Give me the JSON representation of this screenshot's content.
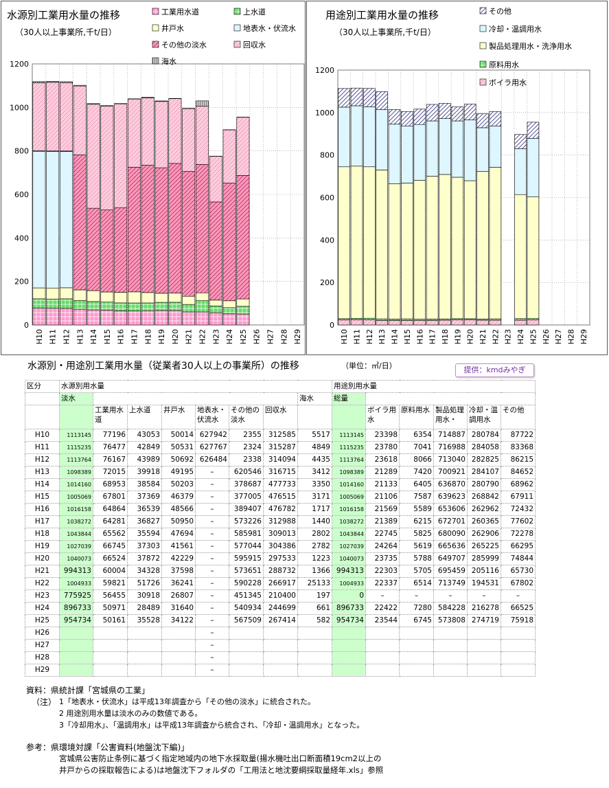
{
  "colors": {
    "industrial": "#ff99cc",
    "tap": "#66dd66",
    "well": "#ffffcc",
    "surface": "#ddf6ff",
    "other_fresh": "#ff99bb",
    "recovered": "#ffccdd",
    "seawater": "#cccccc",
    "boiler": "#ffccdd",
    "raw": "#66dd66",
    "process": "#ffffcc",
    "cooling": "#ddf6ff",
    "other_use": "#9999cc",
    "green_cell": "#ccffcc"
  },
  "chart_data": [
    {
      "type": "bar",
      "stacked": true,
      "title": "水源別工業用水量の推移",
      "subtitle": "（30人以上事業所,千t/日）",
      "categories": [
        "H10",
        "H11",
        "H12",
        "H13",
        "H14",
        "H15",
        "H16",
        "H17",
        "H18",
        "H19",
        "H20",
        "H21",
        "H22",
        "H23",
        "H24",
        "H25",
        "H26",
        "H27",
        "H28",
        "H29"
      ],
      "ylim": [
        0,
        1200
      ],
      "yticks": [
        0,
        200,
        400,
        600,
        800,
        1000,
        1200
      ],
      "legend_placement": "top-right",
      "series": [
        {
          "name": "工業用水道",
          "key": "industrial",
          "values": [
            77.2,
            76.5,
            76.2,
            72.0,
            69.0,
            67.8,
            64.9,
            64.3,
            65.6,
            66.7,
            66.5,
            60.0,
            59.8,
            56.5,
            51.0,
            50.2,
            null,
            null,
            null,
            null
          ]
        },
        {
          "name": "上水道",
          "key": "tap",
          "values": [
            43.1,
            42.8,
            44.0,
            39.9,
            38.6,
            37.4,
            36.5,
            36.8,
            35.6,
            37.3,
            37.9,
            34.3,
            51.7,
            30.9,
            28.5,
            35.5,
            null,
            null,
            null,
            null
          ]
        },
        {
          "name": "井戸水",
          "key": "well",
          "values": [
            50.0,
            50.5,
            50.7,
            49.2,
            50.2,
            46.4,
            48.6,
            51.0,
            47.7,
            41.6,
            42.2,
            37.6,
            36.2,
            26.8,
            31.6,
            34.1,
            null,
            null,
            null,
            null
          ]
        },
        {
          "name": "地表水・伏流水",
          "key": "surface",
          "values": [
            627.9,
            627.8,
            626.5,
            0,
            0,
            0,
            0,
            0,
            0,
            0,
            0,
            0,
            0,
            0,
            0,
            0,
            null,
            null,
            null,
            null
          ]
        },
        {
          "name": "その他の淡水",
          "key": "other_fresh",
          "values": [
            2.4,
            2.3,
            2.3,
            620.5,
            378.7,
            377.0,
            389.4,
            573.2,
            586.0,
            577.0,
            596.0,
            573.7,
            590.2,
            451.3,
            540.9,
            567.5,
            null,
            null,
            null,
            null
          ]
        },
        {
          "name": "回収水",
          "key": "recovered",
          "values": [
            312.6,
            315.3,
            314.1,
            316.7,
            477.7,
            476.5,
            476.8,
            313.0,
            309.0,
            304.4,
            297.5,
            288.7,
            267.0,
            210.4,
            244.7,
            267.4,
            null,
            null,
            null,
            null
          ]
        },
        {
          "name": "海水",
          "key": "seawater",
          "values": [
            5.5,
            4.8,
            4.4,
            3.4,
            3.4,
            3.2,
            1.7,
            1.4,
            2.8,
            2.8,
            1.2,
            1.4,
            25.1,
            0.2,
            0.7,
            0.6,
            null,
            null,
            null,
            null
          ]
        }
      ]
    },
    {
      "type": "bar",
      "stacked": true,
      "title": "用途別工業用水量の推移",
      "subtitle": "（30人以上事業所,千t/日）",
      "categories": [
        "H10",
        "H11",
        "H12",
        "H13",
        "H14",
        "H15",
        "H16",
        "H17",
        "H18",
        "H19",
        "H20",
        "H21",
        "H22",
        "H23",
        "H24",
        "H25",
        "H26",
        "H27",
        "H28",
        "H29"
      ],
      "ylim": [
        0,
        1200
      ],
      "yticks": [
        0,
        200,
        400,
        600,
        800,
        1000,
        1200
      ],
      "legend_placement": "top-right",
      "series": [
        {
          "name": "ボイラ用水",
          "key": "boiler",
          "values": [
            23.4,
            23.8,
            23.6,
            21.3,
            21.1,
            21.1,
            21.6,
            21.4,
            22.7,
            24.3,
            23.7,
            22.3,
            22.3,
            null,
            22.4,
            23.5,
            null,
            null,
            null,
            null
          ]
        },
        {
          "name": "原料用水",
          "key": "raw",
          "values": [
            6.4,
            7.0,
            8.1,
            7.4,
            6.4,
            7.6,
            5.6,
            6.2,
            5.8,
            5.6,
            5.8,
            5.7,
            6.5,
            null,
            7.3,
            6.7,
            null,
            null,
            null,
            null
          ]
        },
        {
          "name": "製品処理用水・洗浄用水",
          "key": "process",
          "values": [
            714.9,
            717.0,
            713.0,
            700.9,
            636.9,
            639.6,
            653.6,
            672.7,
            680.1,
            665.6,
            649.7,
            695.5,
            713.7,
            null,
            584.2,
            573.8,
            null,
            null,
            null,
            null
          ]
        },
        {
          "name": "冷却・温調用水",
          "key": "cooling",
          "values": [
            280.8,
            284.1,
            282.8,
            284.1,
            280.8,
            268.8,
            263.0,
            260.4,
            262.9,
            265.2,
            286.0,
            205.1,
            194.5,
            null,
            216.3,
            274.7,
            null,
            null,
            null,
            null
          ]
        },
        {
          "name": "その他",
          "key": "other_use",
          "values": [
            87.7,
            83.4,
            86.2,
            84.7,
            69.0,
            67.9,
            72.4,
            77.6,
            72.3,
            66.3,
            74.8,
            65.7,
            67.8,
            null,
            66.5,
            75.9,
            null,
            null,
            null,
            null
          ]
        }
      ]
    }
  ],
  "table": {
    "title": "水源別・用途別工業用水量（従業者30人以上の事業所）の推移",
    "unit": "（単位：㎥/日）",
    "provider": "提供：kmdみやぎ",
    "hdr_kubun": "区分",
    "hdr_source": "水源別用水量",
    "hdr_fresh": "淡水",
    "hdr_sea": "海水",
    "hdr_use": "用途別用水量",
    "hdr_total": "総量",
    "cols_source": [
      "工業用水道",
      "上水道",
      "井戸水",
      "地表水・伏流水",
      "その他の淡水",
      "回収水"
    ],
    "cols_use": [
      "ボイラ用水",
      "原料用水",
      "製品処理用水・",
      "冷却・温調用水",
      "その他"
    ],
    "rows": [
      {
        "y": "H10",
        "fresh": "1113145",
        "ind": "77196",
        "tap": "43053",
        "well": "50014",
        "surf": "627942",
        "oth": "2355",
        "rec": "312585",
        "sea": "5517",
        "total": "1113145",
        "boil": "23398",
        "raw": "6354",
        "proc": "714887",
        "cool": "280784",
        "other": "87722"
      },
      {
        "y": "H11",
        "fresh": "1115235",
        "ind": "76477",
        "tap": "42849",
        "well": "50531",
        "surf": "627767",
        "oth": "2324",
        "rec": "315287",
        "sea": "4849",
        "total": "1115235",
        "boil": "23780",
        "raw": "7041",
        "proc": "716988",
        "cool": "284058",
        "other": "83368"
      },
      {
        "y": "H12",
        "fresh": "1113764",
        "ind": "76167",
        "tap": "43989",
        "well": "50692",
        "surf": "626484",
        "oth": "2338",
        "rec": "314094",
        "sea": "4435",
        "total": "1113764",
        "boil": "23618",
        "raw": "8066",
        "proc": "713040",
        "cool": "282825",
        "other": "86215"
      },
      {
        "y": "H13",
        "fresh": "1098389",
        "ind": "72015",
        "tap": "39918",
        "well": "49195",
        "surf": "–",
        "oth": "620546",
        "rec": "316715",
        "sea": "3412",
        "total": "1098389",
        "boil": "21289",
        "raw": "7420",
        "proc": "700921",
        "cool": "284107",
        "other": "84652"
      },
      {
        "y": "H14",
        "fresh": "1014160",
        "ind": "68953",
        "tap": "38584",
        "well": "50203",
        "surf": "–",
        "oth": "378687",
        "rec": "477733",
        "sea": "3350",
        "total": "1014160",
        "boil": "21133",
        "raw": "6405",
        "proc": "636870",
        "cool": "280790",
        "other": "68962"
      },
      {
        "y": "H15",
        "fresh": "1005069",
        "ind": "67801",
        "tap": "37369",
        "well": "46379",
        "surf": "–",
        "oth": "377005",
        "rec": "476515",
        "sea": "3171",
        "total": "1005069",
        "boil": "21106",
        "raw": "7587",
        "proc": "639623",
        "cool": "268842",
        "other": "67911"
      },
      {
        "y": "H16",
        "fresh": "1016158",
        "ind": "64864",
        "tap": "36539",
        "well": "48566",
        "surf": "–",
        "oth": "389407",
        "rec": "476782",
        "sea": "1717",
        "total": "1016158",
        "boil": "21569",
        "raw": "5589",
        "proc": "653606",
        "cool": "262962",
        "other": "72432"
      },
      {
        "y": "H17",
        "fresh": "1038272",
        "ind": "64281",
        "tap": "36827",
        "well": "50950",
        "surf": "–",
        "oth": "573226",
        "rec": "312988",
        "sea": "1440",
        "total": "1038272",
        "boil": "21389",
        "raw": "6215",
        "proc": "672701",
        "cool": "260365",
        "other": "77602"
      },
      {
        "y": "H18",
        "fresh": "1043844",
        "ind": "65562",
        "tap": "35594",
        "well": "47694",
        "surf": "–",
        "oth": "585981",
        "rec": "309013",
        "sea": "2802",
        "total": "1043844",
        "boil": "22745",
        "raw": "5825",
        "proc": "680090",
        "cool": "262906",
        "other": "72278"
      },
      {
        "y": "H19",
        "fresh": "1027039",
        "ind": "66745",
        "tap": "37303",
        "well": "41561",
        "surf": "–",
        "oth": "577044",
        "rec": "304386",
        "sea": "2782",
        "total": "1027039",
        "boil": "24264",
        "raw": "5619",
        "proc": "665636",
        "cool": "265225",
        "other": "66295"
      },
      {
        "y": "H20",
        "fresh": "1040073",
        "ind": "66524",
        "tap": "37872",
        "well": "42229",
        "surf": "–",
        "oth": "595915",
        "rec": "297533",
        "sea": "1223",
        "total": "1040073",
        "boil": "23735",
        "raw": "5788",
        "proc": "649707",
        "cool": "285999",
        "other": "74844"
      },
      {
        "y": "H21",
        "fresh": "994313",
        "ind": "60004",
        "tap": "34328",
        "well": "37598",
        "surf": "–",
        "oth": "573651",
        "rec": "288732",
        "sea": "1366",
        "total": "994313",
        "boil": "22303",
        "raw": "5705",
        "proc": "695459",
        "cool": "205116",
        "other": "65730"
      },
      {
        "y": "H22",
        "fresh": "1004933",
        "ind": "59821",
        "tap": "51726",
        "well": "36241",
        "surf": "–",
        "oth": "590228",
        "rec": "266917",
        "sea": "25133",
        "total": "1004933",
        "boil": "22337",
        "raw": "6514",
        "proc": "713749",
        "cool": "194531",
        "other": "67802"
      },
      {
        "y": "H23",
        "fresh": "775925",
        "ind": "56455",
        "tap": "30918",
        "well": "26807",
        "surf": "–",
        "oth": "451345",
        "rec": "210400",
        "sea": "197",
        "total": "0",
        "boil": "–",
        "raw": "–",
        "proc": "–",
        "cool": "–",
        "other": "–"
      },
      {
        "y": "H24",
        "fresh": "896733",
        "ind": "50971",
        "tap": "28489",
        "well": "31640",
        "surf": "–",
        "oth": "540934",
        "rec": "244699",
        "sea": "661",
        "total": "896733",
        "boil": "22422",
        "raw": "7280",
        "proc": "584228",
        "cool": "216278",
        "other": "66525"
      },
      {
        "y": "H25",
        "fresh": "954734",
        "ind": "50161",
        "tap": "35528",
        "well": "34122",
        "surf": "–",
        "oth": "567509",
        "rec": "267414",
        "sea": "582",
        "total": "954734",
        "boil": "23544",
        "raw": "6745",
        "proc": "573808",
        "cool": "274719",
        "other": "75918"
      },
      {
        "y": "H26",
        "fresh": "",
        "ind": "",
        "tap": "",
        "well": "",
        "surf": "–",
        "oth": "",
        "rec": "",
        "sea": "",
        "total": "",
        "boil": "",
        "raw": "",
        "proc": "",
        "cool": "",
        "other": ""
      },
      {
        "y": "H27",
        "fresh": "",
        "ind": "",
        "tap": "",
        "well": "",
        "surf": "–",
        "oth": "",
        "rec": "",
        "sea": "",
        "total": "",
        "boil": "",
        "raw": "",
        "proc": "",
        "cool": "",
        "other": ""
      },
      {
        "y": "H28",
        "fresh": "",
        "ind": "",
        "tap": "",
        "well": "",
        "surf": "–",
        "oth": "",
        "rec": "",
        "sea": "",
        "total": "",
        "boil": "",
        "raw": "",
        "proc": "",
        "cool": "",
        "other": ""
      },
      {
        "y": "H29",
        "fresh": "",
        "ind": "",
        "tap": "",
        "well": "",
        "surf": "–",
        "oth": "",
        "rec": "",
        "sea": "",
        "total": "",
        "boil": "",
        "raw": "",
        "proc": "",
        "cool": "",
        "other": ""
      }
    ]
  },
  "notes": {
    "source": "資料：県統計課「宮城県の工業」",
    "label": "（注）",
    "n1": "1「地表水・伏流水」は平成13年調査から「その他の淡水」に統合された。",
    "n2": "2 用途別用水量は淡水のみの数値である。",
    "n3": "3「冷却用水」、「温調用水」は平成13年調査から統合され、「冷却・温調用水」となった。",
    "ref": "参考：県環境対課「公害資料(地盤沈下編)」",
    "ref1": "宮城県公害防止条例に基づく指定地域内の地下水採取量(揚水機吐出口断面積19cm2以上の",
    "ref2": "井戸からの採取報告による)は地盤沈下フォルダの「工用法と地沈要綱採取量経年.xls」参照"
  }
}
